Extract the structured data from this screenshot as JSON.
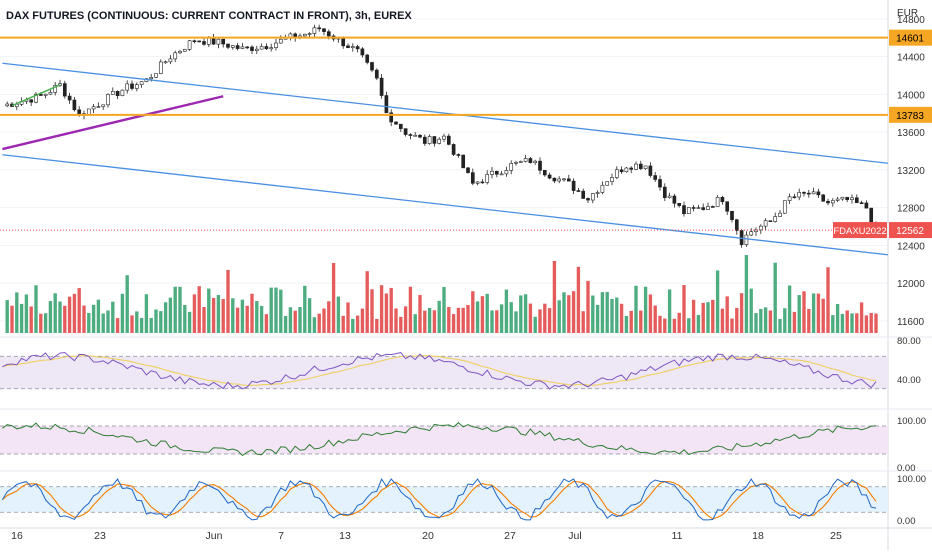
{
  "title": "DAX FUTURES (CONTINUOUS: CURRENT CONTRACT IN FRONT), 3h, EUREX",
  "currency": "EUR",
  "colors": {
    "up": "#26a69a",
    "down": "#ef5350",
    "volume_up": "#2e9d6a",
    "volume_down": "#e04040",
    "level": "#f5a623",
    "channel": "#4a90e2",
    "support": "#9c27b0",
    "green_trend": "#4caf50",
    "rsi": "#7e57c2",
    "rsi_ma": "#f0d060",
    "rsi_band": "#ede7f6",
    "osc2": "#2e7d32",
    "osc2_band": "#f3e5f5",
    "stoch_k": "#1e66c8",
    "stoch_d": "#f57c00",
    "stoch_band": "#e3f2fd",
    "price_tag": "#ef5350"
  },
  "chart_data": {
    "type": "candlestick",
    "title": "DAX FUTURES (CONTINUOUS: CURRENT CONTRACT IN FRONT), 3h, EUREX",
    "x_ticks": [
      "16",
      "23",
      "Jun",
      "7",
      "13",
      "20",
      "27",
      "Jul",
      "11",
      "18",
      "25"
    ],
    "price_axis": {
      "ticks": [
        11600,
        12000,
        12400,
        12800,
        13200,
        13600,
        14000,
        14400,
        14800
      ],
      "range": [
        11450,
        15000
      ]
    },
    "price_path": [
      [
        0,
        13880
      ],
      [
        8,
        13980
      ],
      [
        12,
        14100
      ],
      [
        16,
        13780
      ],
      [
        20,
        13900
      ],
      [
        25,
        14050
      ],
      [
        30,
        14150
      ],
      [
        35,
        14400
      ],
      [
        40,
        14580
      ],
      [
        45,
        14550
      ],
      [
        50,
        14480
      ],
      [
        55,
        14520
      ],
      [
        60,
        14600
      ],
      [
        64,
        14650
      ],
      [
        66,
        14700
      ],
      [
        70,
        14580
      ],
      [
        74,
        14450
      ],
      [
        78,
        14150
      ],
      [
        80,
        13800
      ],
      [
        82,
        13700
      ],
      [
        84,
        13600
      ],
      [
        88,
        13500
      ],
      [
        92,
        13550
      ],
      [
        94,
        13400
      ],
      [
        98,
        13050
      ],
      [
        102,
        13150
      ],
      [
        106,
        13250
      ],
      [
        110,
        13300
      ],
      [
        114,
        13150
      ],
      [
        118,
        13050
      ],
      [
        122,
        12900
      ],
      [
        126,
        13100
      ],
      [
        130,
        13250
      ],
      [
        134,
        13250
      ],
      [
        138,
        12950
      ],
      [
        142,
        12750
      ],
      [
        146,
        12800
      ],
      [
        150,
        12900
      ],
      [
        152,
        12700
      ],
      [
        154,
        12450
      ],
      [
        156,
        12550
      ],
      [
        160,
        12650
      ],
      [
        164,
        12900
      ],
      [
        168,
        12950
      ],
      [
        172,
        12850
      ],
      [
        176,
        12880
      ],
      [
        180,
        12800
      ],
      [
        182,
        12562
      ]
    ],
    "horizontal_levels": [
      {
        "value": 14601,
        "label": "14601"
      },
      {
        "value": 13783,
        "label": "13783"
      }
    ],
    "last_price": {
      "symbol": "FDAXU2022",
      "value": 12562
    },
    "trend_lines": [
      {
        "name": "channel-upper",
        "from": [
          0,
          14330
        ],
        "to": [
          220,
          13270
        ]
      },
      {
        "name": "channel-lower",
        "from": [
          0,
          13360
        ],
        "to": [
          220,
          12300
        ]
      },
      {
        "name": "support",
        "from": [
          0,
          13420
        ],
        "to": [
          46,
          13980
        ]
      },
      {
        "name": "green-trend",
        "from": [
          2,
          13880
        ],
        "to": [
          12,
          14100
        ]
      }
    ],
    "indicators": [
      {
        "name": "rsi",
        "axis": {
          "ticks": [
            "80.00",
            "40.00"
          ]
        },
        "band": [
          30,
          70
        ]
      },
      {
        "name": "oscillator",
        "axis": {
          "ticks": [
            "100.00",
            "0.00"
          ]
        },
        "band": [
          20,
          80
        ]
      },
      {
        "name": "stochastic",
        "axis": {
          "ticks": [
            "100.00",
            "0.00"
          ]
        },
        "band": [
          20,
          80
        ]
      }
    ]
  }
}
